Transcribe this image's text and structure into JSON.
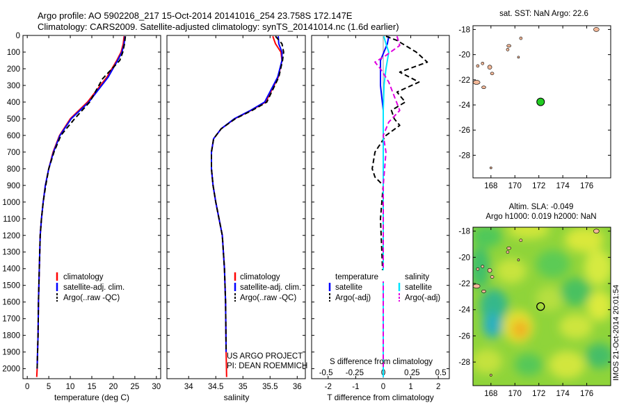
{
  "header": {
    "line1": "Argo profile: AO 5902208_217 15-Oct-2014 20141016_254 23.758S 172.147E",
    "line2": "Climatology: CARS2009. Satellite-adjusted climatology: synTS_20141014.nc (1.6d earlier)"
  },
  "side_stamp": "IMOS 21-Oct-2014 20:01:54",
  "colors": {
    "climatology": "#ff0000",
    "satellite": "#0000ff",
    "argo": "#000000",
    "sal_satellite": "#00e5ff",
    "sal_argo": "#e000e0",
    "float_marker": "#22cc22",
    "land": "#f3b898"
  },
  "chart_data": [
    {
      "type": "line",
      "xlabel": "temperature (deg C)",
      "xlim": [
        -1,
        31
      ],
      "xticks": [
        "0",
        "5",
        "10",
        "15",
        "20",
        "25",
        "30"
      ],
      "ylim": [
        2060,
        0
      ],
      "yticks": [
        "0",
        "100",
        "200",
        "300",
        "400",
        "500",
        "600",
        "700",
        "800",
        "900",
        "1000",
        "1100",
        "1200",
        "1300",
        "1400",
        "1500",
        "1600",
        "1700",
        "1800",
        "1900",
        "2000"
      ],
      "legend": [
        "climatology",
        "satellite-adj. clim.",
        "Argo(..raw -QC)"
      ],
      "series": [
        {
          "name": "climatology",
          "x": [
            22.5,
            22.3,
            21.8,
            20.8,
            18.5,
            14.0,
            10.0,
            7.5,
            6.0,
            5.0,
            4.2,
            3.7,
            3.3,
            3.0,
            2.8,
            2.6,
            2.5,
            2.4,
            2.3,
            2.2
          ],
          "y": [
            5,
            50,
            100,
            150,
            250,
            400,
            500,
            600,
            700,
            800,
            900,
            1000,
            1100,
            1200,
            1400,
            1600,
            1800,
            1900,
            2000,
            2050
          ]
        },
        {
          "name": "satellite-adj. clim.",
          "x": [
            22.7,
            22.5,
            22.0,
            21.0,
            18.8,
            14.3,
            10.2,
            7.6,
            6.1,
            5.0,
            4.2,
            3.7,
            3.3,
            3.0,
            2.8,
            2.6,
            2.5,
            2.4,
            2.3
          ],
          "y": [
            5,
            50,
            100,
            150,
            250,
            400,
            500,
            600,
            700,
            800,
            900,
            1000,
            1100,
            1200,
            1400,
            1600,
            1800,
            1900,
            2000
          ]
        },
        {
          "name": "Argo(..raw -QC)",
          "x": [
            22.8,
            22.6,
            22.2,
            21.5,
            17.5,
            14.5,
            11.0,
            7.8,
            6.2,
            5.0,
            4.3,
            3.7,
            3.3,
            3.0,
            2.8,
            2.6,
            2.5,
            2.4,
            2.3
          ],
          "y": [
            5,
            50,
            100,
            150,
            260,
            400,
            500,
            600,
            700,
            800,
            900,
            1000,
            1100,
            1200,
            1400,
            1600,
            1800,
            1900,
            2000
          ]
        }
      ]
    },
    {
      "type": "line",
      "xlabel": "salinity",
      "xlim": [
        33.6,
        36.15
      ],
      "xticks": [
        "34",
        "34.5",
        "35",
        "35.5",
        "36"
      ],
      "ylim": [
        2060,
        0
      ],
      "legend": [
        "climatology",
        "satellite-adj. clim.",
        "Argo(..raw -QC)"
      ],
      "annotation": [
        "US ARGO PROJECT",
        "PI: DEAN ROEMMICH"
      ],
      "series": [
        {
          "name": "climatology",
          "x": [
            35.55,
            35.6,
            35.7,
            35.72,
            35.65,
            35.42,
            35.15,
            34.85,
            34.6,
            34.46,
            34.42,
            34.42,
            34.45,
            34.5,
            34.56,
            34.62,
            34.66,
            34.68,
            34.69,
            34.7
          ],
          "y": [
            5,
            50,
            100,
            150,
            250,
            400,
            450,
            500,
            560,
            620,
            700,
            800,
            900,
            1000,
            1100,
            1200,
            1400,
            1600,
            1900,
            2050
          ]
        },
        {
          "name": "satellite-adj. clim.",
          "x": [
            35.65,
            35.66,
            35.72,
            35.72,
            35.64,
            35.4,
            35.14,
            34.84,
            34.6,
            34.46,
            34.42,
            34.42,
            34.45,
            34.5,
            34.56,
            34.62,
            34.66,
            34.68,
            34.69
          ],
          "y": [
            5,
            50,
            100,
            150,
            250,
            400,
            450,
            500,
            560,
            620,
            700,
            800,
            900,
            1000,
            1100,
            1200,
            1400,
            1600,
            1900
          ]
        },
        {
          "name": "Argo(..raw -QC)",
          "x": [
            35.6,
            35.72,
            35.75,
            35.73,
            35.66,
            35.44,
            35.17,
            34.86,
            34.6,
            34.46,
            34.42,
            34.42,
            34.45,
            34.5,
            34.56,
            34.62,
            34.66,
            34.68,
            34.69
          ],
          "y": [
            5,
            50,
            100,
            150,
            250,
            400,
            450,
            500,
            560,
            620,
            700,
            800,
            900,
            1000,
            1100,
            1200,
            1400,
            1600,
            1900
          ]
        }
      ]
    },
    {
      "type": "line",
      "xlabel": "T difference from climatology",
      "xlabel_top": "S difference from climatology",
      "xlim": [
        -2.6,
        2.4
      ],
      "xticks": [
        "-2",
        "-1",
        "0",
        "1",
        "2"
      ],
      "xticks_top": [
        "-0.5",
        "-0.25",
        "0",
        "0.25",
        "0.5"
      ],
      "ylim": [
        2060,
        0
      ],
      "legend_title_left": "temperature",
      "legend_title_right": "salinity",
      "legend": [
        "satellite",
        "Argo(-adj)",
        "satellite",
        "Argo(-adj)"
      ],
      "series": [
        {
          "name": "satellite",
          "x": [
            0.2,
            0.15,
            -0.1,
            -0.1,
            0.0,
            0.0,
            0.0,
            0.0,
            0.0,
            0.0,
            0.0
          ],
          "y": [
            5,
            50,
            150,
            300,
            450,
            600,
            800,
            1000,
            1300,
            1600,
            2050
          ]
        },
        {
          "name": "Argo(-adj)",
          "x": [
            0.1,
            0.5,
            0.8,
            1.2,
            1.6,
            0.6,
            1.3,
            0.5,
            0.8,
            0.3,
            0.4,
            0.6,
            0.1,
            -0.3,
            -0.4,
            -0.3,
            0.0,
            -0.1,
            0.0,
            0.0
          ],
          "y": [
            5,
            30,
            60,
            100,
            160,
            220,
            280,
            340,
            400,
            450,
            500,
            540,
            600,
            700,
            800,
            850,
            900,
            1100,
            1500,
            2000
          ]
        },
        {
          "name": "satellite",
          "x": [
            0.02,
            0.1,
            0.2,
            0.1,
            0.03,
            0.0,
            0.0,
            0.0,
            0.0,
            0.0
          ],
          "y": [
            5,
            50,
            100,
            200,
            300,
            450,
            600,
            900,
            1400,
            2050
          ]
        },
        {
          "name": "Argo(-adj)",
          "x": [
            0.5,
            0.6,
            0.1,
            -0.3,
            -0.1,
            0.2,
            0.6,
            0.2,
            0.0,
            0.1,
            0.0,
            0.0
          ],
          "y": [
            5,
            60,
            120,
            160,
            200,
            280,
            450,
            520,
            600,
            700,
            900,
            2000
          ]
        }
      ]
    },
    {
      "type": "scatter",
      "title": "sat. SST: NaN Argo: 22.6",
      "xlim": [
        166.5,
        178
      ],
      "ylim": [
        -29.8,
        -17.7
      ],
      "xticks": [
        "168",
        "170",
        "172",
        "174",
        "176"
      ],
      "yticks": [
        "-18",
        "-20",
        "-22",
        "-24",
        "-26",
        "-28"
      ],
      "float": {
        "lon": 172.147,
        "lat": -23.758
      }
    },
    {
      "type": "heatmap",
      "title": "Altim. SLA: -0.049",
      "subtitle": "Argo h1000: 0.019 h2000: NaN",
      "xlim": [
        166.5,
        178
      ],
      "ylim": [
        -29.8,
        -17.7
      ],
      "xticks": [
        "168",
        "170",
        "172",
        "174",
        "176"
      ],
      "yticks": [
        "-18",
        "-20",
        "-22",
        "-24",
        "-26",
        "-28"
      ],
      "float": {
        "lon": 172.147,
        "lat": -23.758
      }
    }
  ]
}
